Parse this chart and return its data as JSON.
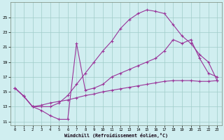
{
  "xlabel": "Windchill (Refroidissement éolien,°C)",
  "bg_color": "#d0eef0",
  "line_color": "#993399",
  "grid_color": "#a0ccc8",
  "xlim": [
    -0.5,
    23.5
  ],
  "ylim": [
    10.5,
    27.0
  ],
  "yticks": [
    11,
    13,
    15,
    17,
    19,
    21,
    23,
    25
  ],
  "xticks": [
    0,
    1,
    2,
    3,
    4,
    5,
    6,
    7,
    8,
    9,
    10,
    11,
    12,
    13,
    14,
    15,
    16,
    17,
    18,
    19,
    20,
    21,
    22,
    23
  ],
  "line1_x": [
    0,
    1,
    2,
    3,
    4,
    5,
    6,
    7,
    8,
    9,
    10,
    11,
    12,
    13,
    14,
    15,
    16,
    17,
    18,
    19,
    20,
    21,
    22,
    23
  ],
  "line1_y": [
    15.5,
    14.4,
    13.0,
    13.0,
    13.0,
    13.5,
    14.5,
    16.0,
    17.5,
    19.0,
    20.5,
    21.8,
    23.5,
    24.7,
    25.5,
    26.0,
    25.8,
    25.5,
    24.0,
    22.5,
    21.5,
    20.0,
    19.0,
    16.5
  ],
  "line2_x": [
    0,
    1,
    2,
    3,
    4,
    5,
    6,
    7,
    8,
    9,
    10,
    11,
    12,
    13,
    14,
    15,
    16,
    17,
    18,
    19,
    20,
    21,
    22,
    23
  ],
  "line2_y": [
    15.5,
    14.4,
    13.0,
    12.5,
    11.8,
    11.3,
    11.3,
    21.5,
    15.2,
    15.5,
    16.0,
    17.0,
    17.5,
    18.0,
    18.5,
    19.0,
    19.5,
    20.5,
    22.0,
    21.5,
    22.0,
    19.5,
    17.5,
    17.0
  ],
  "line3_x": [
    0,
    1,
    2,
    3,
    4,
    5,
    6,
    7,
    8,
    9,
    10,
    11,
    12,
    13,
    14,
    15,
    16,
    17,
    18,
    19,
    20,
    21,
    22,
    23
  ],
  "line3_y": [
    15.5,
    14.4,
    13.0,
    13.2,
    13.5,
    13.7,
    13.9,
    14.2,
    14.5,
    14.7,
    15.0,
    15.2,
    15.4,
    15.6,
    15.8,
    16.0,
    16.2,
    16.4,
    16.5,
    16.5,
    16.5,
    16.4,
    16.4,
    16.5
  ]
}
